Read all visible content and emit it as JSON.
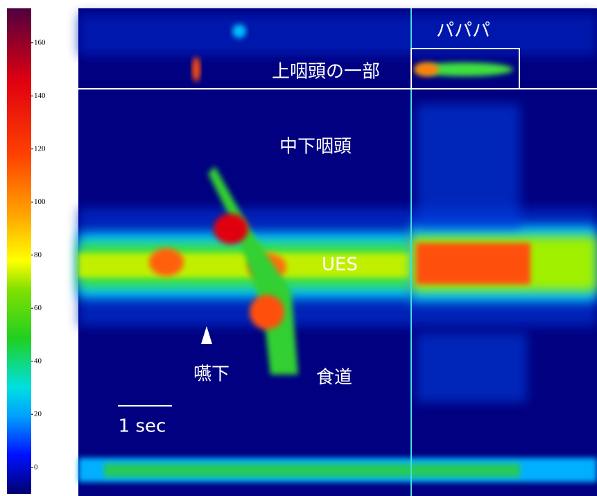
{
  "colorbar": {
    "lim": [
      -10,
      173
    ],
    "ticks": [
      0,
      20,
      40,
      60,
      80,
      100,
      120,
      140,
      160
    ]
  },
  "annotations": [
    "パパパ",
    "上咽頭の一部",
    "中下咽頭",
    "UES",
    "嚥下",
    "食道"
  ],
  "scale_bar": "1 sec"
}
